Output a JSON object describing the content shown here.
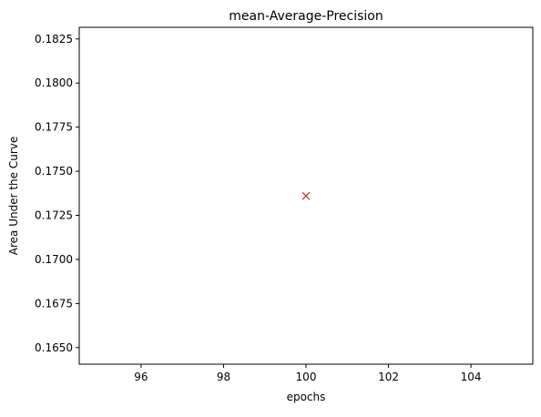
{
  "chart_data": {
    "type": "scatter",
    "title": "mean-Average-Precision",
    "xlabel": "epochs",
    "ylabel": "Area Under the Curve",
    "xlim": [
      94.5,
      105.5
    ],
    "ylim": [
      0.16406,
      0.18316
    ],
    "xticks": [
      96,
      98,
      100,
      102,
      104
    ],
    "xtick_labels": [
      "96",
      "98",
      "100",
      "102",
      "104"
    ],
    "yticks": [
      0.165,
      0.1675,
      0.17,
      0.1725,
      0.175,
      0.1775,
      0.18,
      0.1825
    ],
    "ytick_labels": [
      "0.1650",
      "0.1675",
      "0.1700",
      "0.1725",
      "0.1750",
      "0.1775",
      "0.1800",
      "0.1825"
    ],
    "grid": false,
    "marker": "x",
    "series": [
      {
        "x": [
          100
        ],
        "y": [
          0.1736
        ],
        "color": "#d62728"
      }
    ]
  }
}
